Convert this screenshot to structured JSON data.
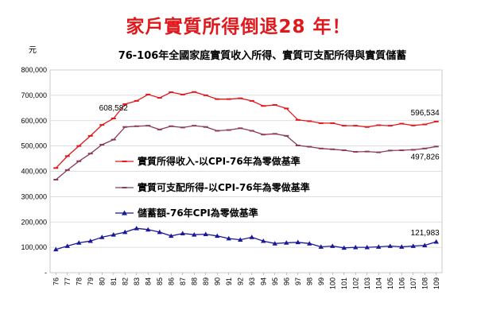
{
  "headline": "家戶實質所得倒退28 年！",
  "chart_data": {
    "type": "line",
    "title": "76-106年全國家庭實質收入所得、實質可支配所得與實質儲蓄",
    "unit_label": "元",
    "ylim": [
      0,
      800000
    ],
    "yticks": [
      "-",
      "100,000",
      "200,000",
      "300,000",
      "400,000",
      "500,000",
      "600,000",
      "700,000",
      "800,000"
    ],
    "grid": true,
    "legend_position": "center",
    "x": [
      "76",
      "77",
      "78",
      "79",
      "80",
      "81",
      "82",
      "83",
      "84",
      "85",
      "86",
      "87",
      "88",
      "89",
      "90",
      "91",
      "92",
      "93",
      "94",
      "95",
      "96",
      "97",
      "98",
      "99",
      "100",
      "101",
      "102",
      "103",
      "104",
      "105",
      "106",
      "107",
      "108",
      "109"
    ],
    "series": [
      {
        "name": "實質所得收入-以CPI-76年為零做基準",
        "color": "#e0181b",
        "marker": "dash",
        "values": [
          413000,
          460000,
          500000,
          540000,
          583000,
          608582,
          665000,
          678000,
          703000,
          690000,
          712000,
          703000,
          713000,
          700000,
          685000,
          685000,
          688000,
          678000,
          658000,
          662000,
          648000,
          603000,
          598000,
          590000,
          590000,
          580000,
          580000,
          575000,
          582000,
          580000,
          588000,
          581000,
          585000,
          596534
        ]
      },
      {
        "name": "實質可支配所得-以CPI-76年為零做基準",
        "color": "#8c3a5c",
        "marker": "dash",
        "values": [
          367000,
          405000,
          440000,
          470000,
          505000,
          525000,
          575000,
          578000,
          580000,
          565000,
          578000,
          573000,
          580000,
          575000,
          560000,
          563000,
          570000,
          560000,
          545000,
          548000,
          540000,
          502000,
          497000,
          490000,
          487000,
          483000,
          477000,
          478000,
          475000,
          482000,
          483000,
          485000,
          490000,
          497826
        ]
      },
      {
        "name": "儲蓄額-76年CPI為零做基準",
        "color": "#18189a",
        "marker": "triangle",
        "values": [
          92000,
          105000,
          118000,
          125000,
          140000,
          150000,
          160000,
          175000,
          170000,
          160000,
          145000,
          155000,
          150000,
          152000,
          145000,
          135000,
          130000,
          140000,
          125000,
          115000,
          118000,
          120000,
          115000,
          102000,
          105000,
          98000,
          100000,
          100000,
          102000,
          105000,
          102000,
          105000,
          108000,
          121983
        ]
      }
    ],
    "data_labels": [
      {
        "series": 0,
        "index": 5,
        "text": "608,582"
      },
      {
        "series": 0,
        "index": 33,
        "text": "596,534"
      },
      {
        "series": 1,
        "index": 33,
        "text": "497,826"
      },
      {
        "series": 2,
        "index": 33,
        "text": "121,983"
      }
    ]
  }
}
